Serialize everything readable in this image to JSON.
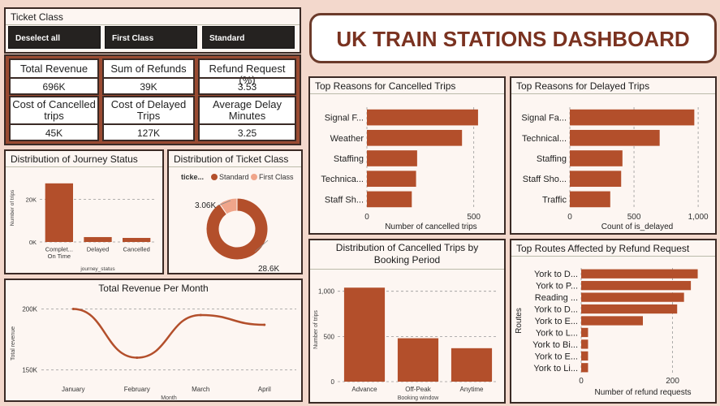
{
  "title": "UK TRAIN STATIONS DASHBOARD",
  "colors": {
    "bar": "#b34f2b",
    "light": "#f0a58a",
    "bg": "#f3d8cc"
  },
  "slicer": {
    "title": "Ticket Class",
    "buttons": [
      "Deselect all",
      "First Class",
      "Standard"
    ]
  },
  "kpis": [
    {
      "label": "Total Revenue",
      "value": "696K"
    },
    {
      "label": "Sum of Refunds",
      "value": "39K"
    },
    {
      "label": "Refund Request (%)",
      "value": "3.53"
    },
    {
      "label": "Cost of Cancelled trips",
      "value": "45K"
    },
    {
      "label": "Cost of Delayed Trips",
      "value": "127K"
    },
    {
      "label": "Average Delay Minutes",
      "value": "3.25"
    }
  ],
  "journey_status": {
    "title": "Distribution of Journey Status",
    "ylabel": "Number of trips",
    "xlabel": "journey_status",
    "ticks": [
      "0K",
      "20K"
    ],
    "tick_values": [
      0,
      20000
    ],
    "ymax": 32000,
    "categories": [
      "Complet... On Time",
      "Delayed",
      "Cancelled"
    ],
    "cat_line1": [
      "Complet...",
      "Delayed",
      "Cancelled"
    ],
    "cat_line2": [
      "On Time",
      "",
      ""
    ],
    "values": [
      27500,
      2300,
      1900
    ]
  },
  "ticket_class": {
    "title": "Distribution of Ticket Class",
    "legend_title": "ticke...",
    "legend": [
      "Standard",
      "First Class"
    ],
    "labels": [
      "28.6K",
      "3.06K"
    ],
    "values": [
      28600,
      3060
    ]
  },
  "revenue_month": {
    "title": "Total Revenue Per Month",
    "ylabel": "Total revenue",
    "xlabel": "Month",
    "ticks": [
      "200K",
      "150K"
    ],
    "tick_values": [
      200000,
      150000
    ],
    "ylim": [
      145000,
      205000
    ],
    "months": [
      "January",
      "February",
      "March",
      "April"
    ],
    "values": [
      200000,
      160000,
      195000,
      187000
    ]
  },
  "cancel_reasons": {
    "title": "Top Reasons for Cancelled Trips",
    "xlabel": "Number of cancelled trips",
    "ticks": [
      "0",
      "500"
    ],
    "tick_values": [
      0,
      500
    ],
    "xmax": 600,
    "categories": [
      "Signal F...",
      "Weather",
      "Staffing",
      "Technica...",
      "Staff Sh..."
    ],
    "values": [
      520,
      445,
      235,
      230,
      210
    ]
  },
  "delay_reasons": {
    "title": "Top Reasons for Delayed Trips",
    "xlabel": "Count of is_delayed",
    "ticks": [
      "0",
      "500",
      "1,000"
    ],
    "tick_values": [
      0,
      500,
      1000
    ],
    "xmax": 1050,
    "categories": [
      "Signal Fa...",
      "Technical...",
      "Staffing",
      "Staff Sho...",
      "Traffic"
    ],
    "values": [
      970,
      700,
      410,
      400,
      315
    ]
  },
  "booking_period": {
    "title": "Distribution of Cancelled Trips by Booking Period",
    "ylabel": "Number of trips",
    "xlabel": "Booking window",
    "ticks": [
      "0",
      "500",
      "1,000"
    ],
    "tick_values": [
      0,
      500,
      1000
    ],
    "ymax": 1150,
    "categories": [
      "Advance",
      "Off-Peak",
      "Anytime"
    ],
    "values": [
      1040,
      480,
      370
    ]
  },
  "refund_routes": {
    "title": "Top Routes Affected by Refund Request",
    "ylabel": "Routes",
    "xlabel": "Number of refund requests",
    "ticks": [
      "0",
      "200"
    ],
    "tick_values": [
      0,
      200
    ],
    "xmax": 270,
    "categories": [
      "York to D...",
      "York to P...",
      "Reading ...",
      "York to D...",
      "York to E...",
      "York to L...",
      "York to Bi...",
      "York to E...",
      "York to Li..."
    ],
    "values": [
      255,
      240,
      225,
      210,
      135,
      15,
      15,
      15,
      15
    ]
  }
}
